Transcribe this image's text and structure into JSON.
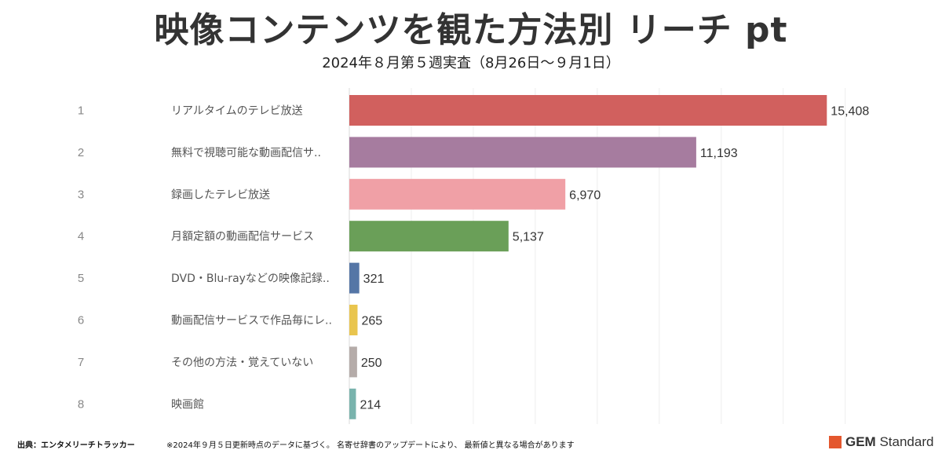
{
  "header": {
    "title": "映像コンテンツを観た方法別 リーチ pt",
    "subtitle": "2024年８月第５週実査（8月26日～９月1日）"
  },
  "footer": {
    "source": "出典：エンタメリーチトラッカー",
    "note": "※2024年９月５日更新時点のデータに基づく。 名寄せ辞書のアップデートにより、 最新値と異なる場合があります",
    "logo_bold": "GEM",
    "logo_rest": " Standard"
  },
  "chart_data": {
    "type": "bar",
    "orientation": "horizontal",
    "title": "映像コンテンツを観た方法別 リーチ pt",
    "subtitle": "2024年８月第５週実査（8月26日～９月1日）",
    "ranks": [
      "1",
      "2",
      "3",
      "4",
      "5",
      "6",
      "7",
      "8"
    ],
    "categories": [
      "リアルタイムのテレビ放送",
      "無料で視聴可能な動画配信サ..",
      "録画したテレビ放送",
      "月額定額の動画配信サービス",
      "DVD・Blu-rayなどの映像記録..",
      "動画配信サービスで作品毎にレ..",
      "その他の方法・覚えていない",
      "映画館"
    ],
    "values": [
      15408,
      11193,
      6970,
      5137,
      321,
      265,
      250,
      214
    ],
    "value_labels": [
      "15,408",
      "11,193",
      "6,970",
      "5,137",
      "321",
      "265",
      "250",
      "214"
    ],
    "colors": [
      "#d1605e",
      "#a67c9f",
      "#f0a0a6",
      "#6a9f58",
      "#5576a6",
      "#e9c54e",
      "#b5aca9",
      "#79b3ad"
    ],
    "xlim": [
      0,
      16000
    ],
    "grid": true
  }
}
